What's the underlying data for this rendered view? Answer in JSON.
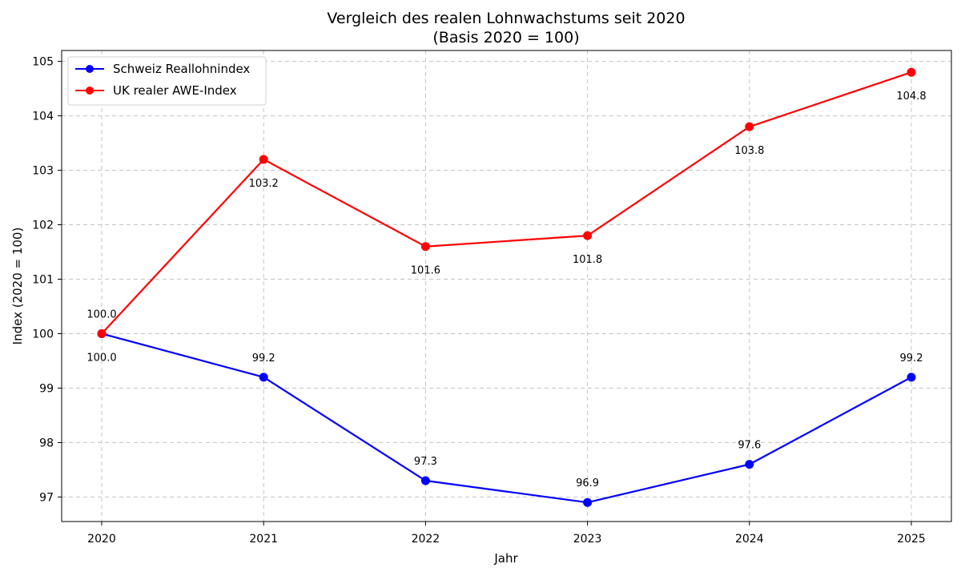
{
  "chart_data": {
    "type": "line",
    "title": "Vergleich des realen Lohnwachstums seit 2020",
    "subtitle": "(Basis 2020 = 100)",
    "xlabel": "Jahr",
    "ylabel": "Index (2020 = 100)",
    "x": [
      "2020",
      "2021",
      "2022",
      "2023",
      "2024",
      "2025"
    ],
    "ylim": [
      96.55,
      105.2
    ],
    "yticks": [
      "97",
      "98",
      "99",
      "100",
      "101",
      "102",
      "103",
      "104",
      "105"
    ],
    "grid": true,
    "legend_position": "top-left",
    "series": [
      {
        "name": "Schweiz Reallohnindex",
        "color": "#0000ff",
        "values": [
          100.0,
          99.2,
          97.3,
          96.9,
          97.6,
          99.2
        ],
        "labels": [
          "100.0",
          "99.2",
          "97.3",
          "96.9",
          "97.6",
          "99.2"
        ],
        "label_side": "above"
      },
      {
        "name": "UK realer AWE-Index",
        "color": "#ff0000",
        "values": [
          100.0,
          103.2,
          101.6,
          101.8,
          103.8,
          104.8
        ],
        "labels": [
          "100.0",
          "103.2",
          "101.6",
          "101.8",
          "103.8",
          "104.8"
        ],
        "label_side": "below"
      }
    ]
  }
}
